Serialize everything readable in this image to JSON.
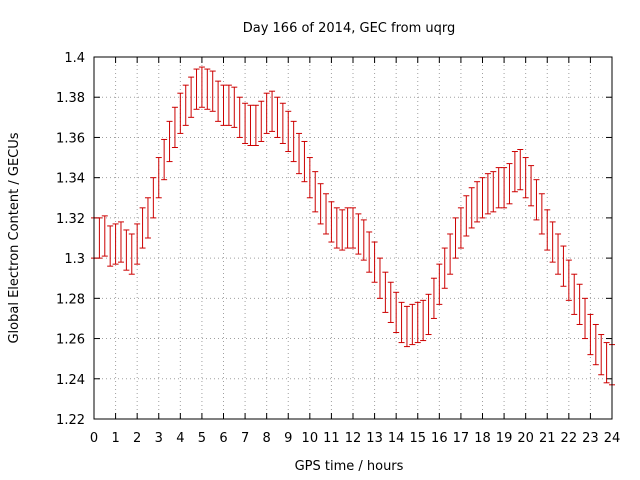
{
  "chart_data": {
    "type": "scatter",
    "title": "Day 166 of 2014, GEC from uqrg",
    "xlabel": "GPS time / hours",
    "ylabel": "Global Electron Content / GECUs",
    "xlim": [
      0,
      24
    ],
    "ylim": [
      1.22,
      1.4
    ],
    "xticks": [
      0,
      1,
      2,
      3,
      4,
      5,
      6,
      7,
      8,
      9,
      10,
      11,
      12,
      13,
      14,
      15,
      16,
      17,
      18,
      19,
      20,
      21,
      22,
      23,
      24
    ],
    "xtick_labels": [
      "0",
      "1",
      "2",
      "3",
      "4",
      "5",
      "6",
      "7",
      "8",
      "9",
      "10",
      "11",
      "12",
      "13",
      "14",
      "15",
      "16",
      "17",
      "18",
      "19",
      "20",
      "21",
      "22",
      "23",
      "24"
    ],
    "yticks": [
      1.22,
      1.24,
      1.26,
      1.28,
      1.3,
      1.32,
      1.34,
      1.36,
      1.38,
      1.4
    ],
    "ytick_labels": [
      "1.22",
      "1.24",
      "1.26",
      "1.28",
      "1.3",
      "1.32",
      "1.34",
      "1.36",
      "1.38",
      "1.4"
    ],
    "grid": true,
    "error_bar": 0.01,
    "series_color": "#cc0000",
    "series": [
      {
        "x": [
          0,
          0.25,
          0.5,
          0.75,
          1,
          1.25,
          1.5,
          1.75,
          2,
          2.25,
          2.5,
          2.75,
          3,
          3.25,
          3.5,
          3.75,
          4,
          4.25,
          4.5,
          4.75,
          5,
          5.25,
          5.5,
          5.75,
          6,
          6.25,
          6.5,
          6.75,
          7,
          7.25,
          7.5,
          7.75,
          8,
          8.25,
          8.5,
          8.75,
          9,
          9.25,
          9.5,
          9.75,
          10,
          10.25,
          10.5,
          10.75,
          11,
          11.25,
          11.5,
          11.75,
          12,
          12.25,
          12.5,
          12.75,
          13,
          13.25,
          13.5,
          13.75,
          14,
          14.25,
          14.5,
          14.75,
          15,
          15.25,
          15.5,
          15.75,
          16,
          16.25,
          16.5,
          16.75,
          17,
          17.25,
          17.5,
          17.75,
          18,
          18.25,
          18.5,
          18.75,
          19,
          19.25,
          19.5,
          19.75,
          20,
          20.25,
          20.5,
          20.75,
          21,
          21.25,
          21.5,
          21.75,
          22,
          22.25,
          22.5,
          22.75,
          23,
          23.25,
          23.5,
          23.75,
          24
        ],
        "y": [
          1.31,
          1.31,
          1.311,
          1.306,
          1.307,
          1.308,
          1.304,
          1.302,
          1.307,
          1.315,
          1.32,
          1.33,
          1.34,
          1.349,
          1.358,
          1.365,
          1.372,
          1.376,
          1.38,
          1.384,
          1.385,
          1.384,
          1.383,
          1.378,
          1.376,
          1.376,
          1.375,
          1.37,
          1.367,
          1.366,
          1.366,
          1.368,
          1.372,
          1.373,
          1.37,
          1.367,
          1.363,
          1.358,
          1.352,
          1.348,
          1.34,
          1.333,
          1.327,
          1.322,
          1.318,
          1.315,
          1.314,
          1.315,
          1.315,
          1.312,
          1.309,
          1.303,
          1.298,
          1.29,
          1.283,
          1.278,
          1.273,
          1.268,
          1.266,
          1.267,
          1.268,
          1.269,
          1.272,
          1.28,
          1.287,
          1.295,
          1.302,
          1.31,
          1.315,
          1.321,
          1.325,
          1.328,
          1.33,
          1.332,
          1.333,
          1.335,
          1.335,
          1.337,
          1.343,
          1.344,
          1.34,
          1.336,
          1.329,
          1.322,
          1.314,
          1.308,
          1.302,
          1.296,
          1.289,
          1.282,
          1.277,
          1.27,
          1.262,
          1.257,
          1.252,
          1.248,
          1.247
        ]
      }
    ]
  }
}
